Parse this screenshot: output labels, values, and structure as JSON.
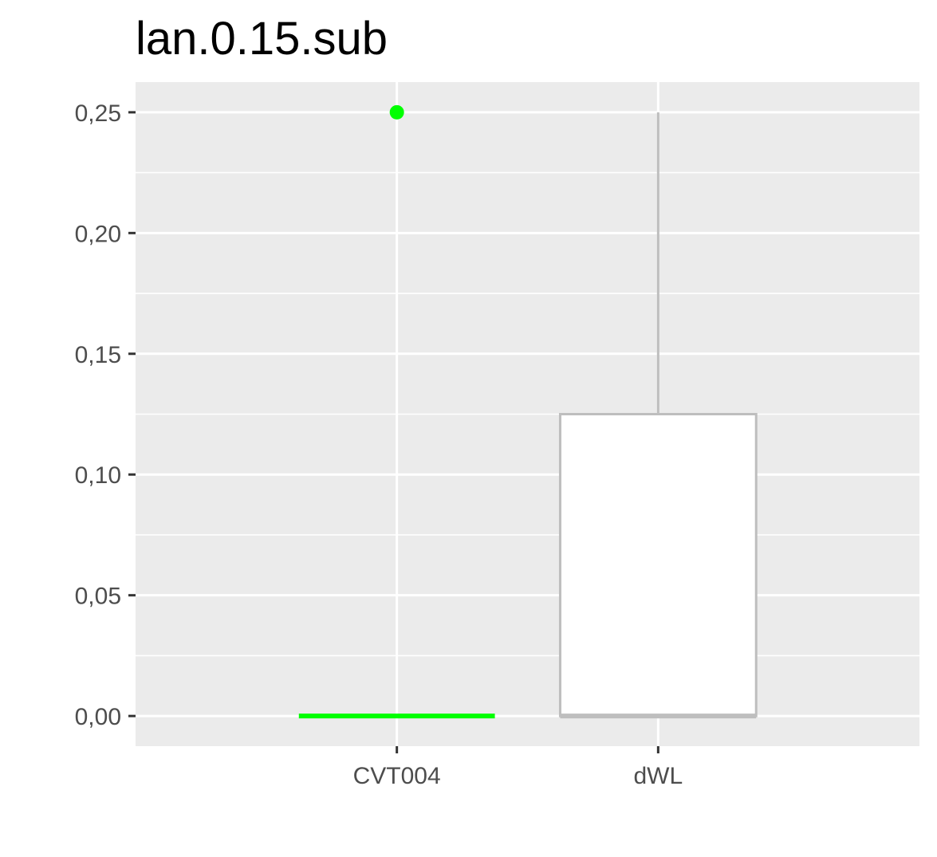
{
  "chart_data": {
    "type": "boxplot",
    "title": "lan.0.15.sub",
    "xlabel": "",
    "ylabel": "",
    "categories": [
      "CVT004",
      "dWL"
    ],
    "ylim": [
      -0.0125,
      0.2625
    ],
    "y_ticks": [
      0,
      0.05,
      0.1,
      0.15,
      0.2,
      0.25
    ],
    "y_tick_labels": [
      "0,00",
      "0,05",
      "0,10",
      "0,15",
      "0,20",
      "0,25"
    ],
    "grid": true,
    "legend": "none",
    "boxes": [
      {
        "category": "CVT004",
        "min": 0,
        "q1": 0,
        "median": 0,
        "q3": 0,
        "max": 0,
        "outliers": [
          0.25
        ],
        "color": "#00ff00",
        "fill": "#ffffff"
      },
      {
        "category": "dWL",
        "min": 0,
        "q1": 0,
        "median": 0,
        "q3": 0.125,
        "max": 0.25,
        "outliers": [],
        "color": "#bebebe",
        "fill": "#ffffff"
      }
    ]
  },
  "colors": {
    "panel_background": "#ebebeb",
    "grid": "#ffffff",
    "tick": "#333333",
    "tick_label": "#4d4d4d"
  }
}
